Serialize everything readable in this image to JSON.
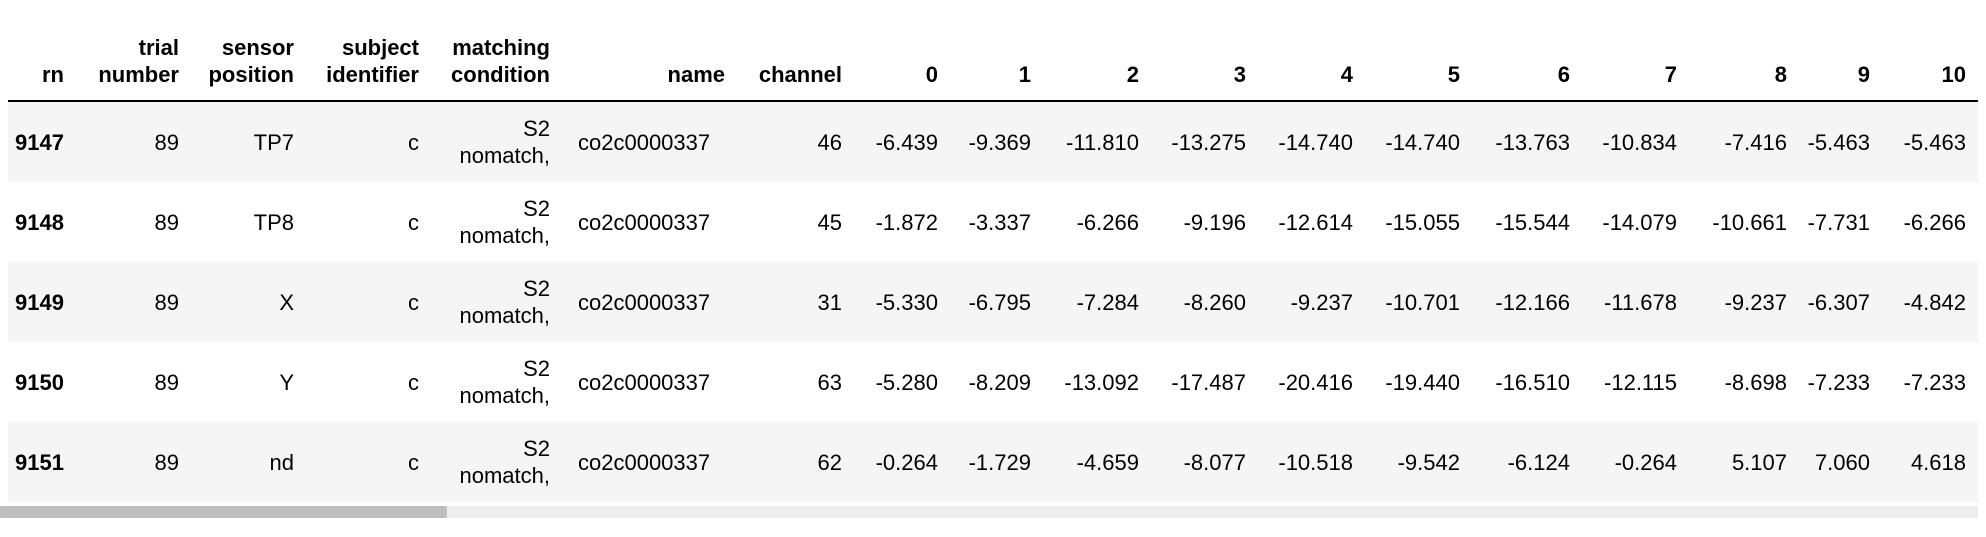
{
  "table": {
    "columns": [
      "rn",
      "trial number",
      "sensor position",
      "subject identifier",
      "matching condition",
      "name",
      "channel",
      "0",
      "1",
      "2",
      "3",
      "4",
      "5",
      "6",
      "7",
      "8",
      "9",
      "10"
    ],
    "rows": [
      {
        "rn": "9147",
        "trial_number": "89",
        "sensor_position": "TP7",
        "subject_identifier": "c",
        "matching_condition": [
          "S2",
          "nomatch,"
        ],
        "name": "co2c0000337",
        "channel": "46",
        "values": [
          "-6.439",
          "-9.369",
          "-11.810",
          "-13.275",
          "-14.740",
          "-14.740",
          "-13.763",
          "-10.834",
          "-7.416",
          "-5.463",
          "-5.463"
        ]
      },
      {
        "rn": "9148",
        "trial_number": "89",
        "sensor_position": "TP8",
        "subject_identifier": "c",
        "matching_condition": [
          "S2",
          "nomatch,"
        ],
        "name": "co2c0000337",
        "channel": "45",
        "values": [
          "-1.872",
          "-3.337",
          "-6.266",
          "-9.196",
          "-12.614",
          "-15.055",
          "-15.544",
          "-14.079",
          "-10.661",
          "-7.731",
          "-6.266"
        ]
      },
      {
        "rn": "9149",
        "trial_number": "89",
        "sensor_position": "X",
        "subject_identifier": "c",
        "matching_condition": [
          "S2",
          "nomatch,"
        ],
        "name": "co2c0000337",
        "channel": "31",
        "values": [
          "-5.330",
          "-6.795",
          "-7.284",
          "-8.260",
          "-9.237",
          "-10.701",
          "-12.166",
          "-11.678",
          "-9.237",
          "-6.307",
          "-4.842"
        ]
      },
      {
        "rn": "9150",
        "trial_number": "89",
        "sensor_position": "Y",
        "subject_identifier": "c",
        "matching_condition": [
          "S2",
          "nomatch,"
        ],
        "name": "co2c0000337",
        "channel": "63",
        "values": [
          "-5.280",
          "-8.209",
          "-13.092",
          "-17.487",
          "-20.416",
          "-19.440",
          "-16.510",
          "-12.115",
          "-8.698",
          "-7.233",
          "-7.233"
        ]
      },
      {
        "rn": "9151",
        "trial_number": "89",
        "sensor_position": "nd",
        "subject_identifier": "c",
        "matching_condition": [
          "S2",
          "nomatch,"
        ],
        "name": "co2c0000337",
        "channel": "62",
        "values": [
          "-0.264",
          "-1.729",
          "-4.659",
          "-8.077",
          "-10.518",
          "-9.542",
          "-6.124",
          "-0.264",
          "5.107",
          "7.060",
          "4.618"
        ]
      }
    ]
  },
  "scrollbar": {
    "horizontal_position_fraction": 0.0,
    "visible_fraction": 0.226
  }
}
